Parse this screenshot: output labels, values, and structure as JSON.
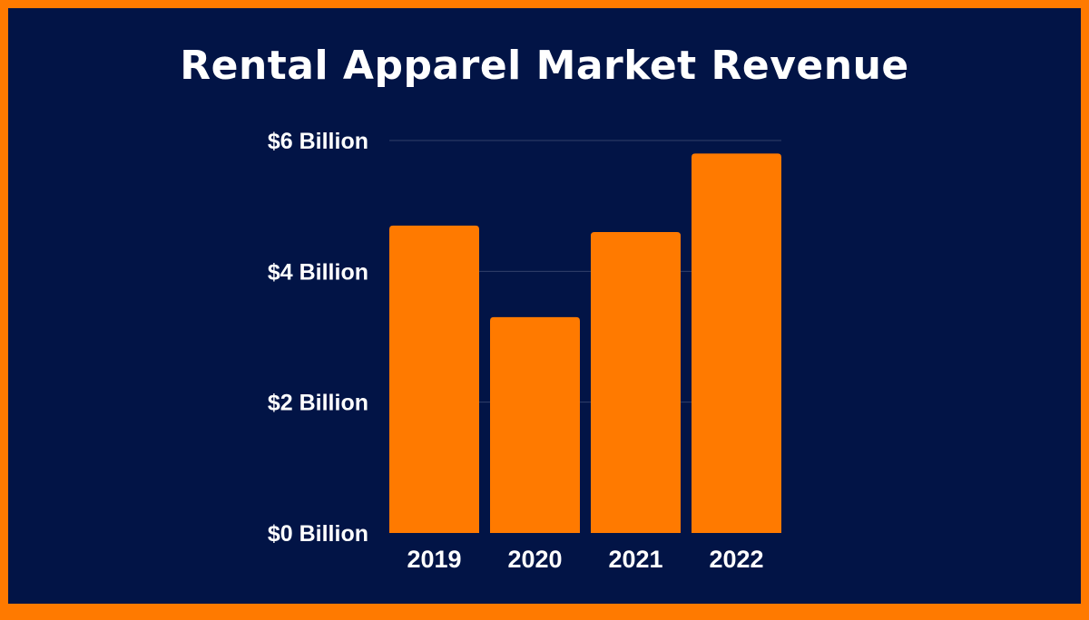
{
  "colors": {
    "background": "#021446",
    "border": "#ff7a00",
    "bar": "#ff7a00",
    "text": "#ffffff",
    "grid": "#33406b"
  },
  "chart_data": {
    "type": "bar",
    "title": "Rental Apparel Market Revenue",
    "categories": [
      "2019",
      "2020",
      "2021",
      "2022"
    ],
    "values": [
      4.7,
      3.3,
      4.6,
      5.8
    ],
    "unit": "Billion USD",
    "xlabel": "",
    "ylabel": "",
    "ylim": [
      0,
      6
    ],
    "y_ticks": [
      0,
      2,
      4,
      6
    ],
    "y_tick_labels": [
      "$0 Billion",
      "$2 Billion",
      "$4 Billion",
      "$6 Billion"
    ],
    "grid": true,
    "legend": "none"
  }
}
